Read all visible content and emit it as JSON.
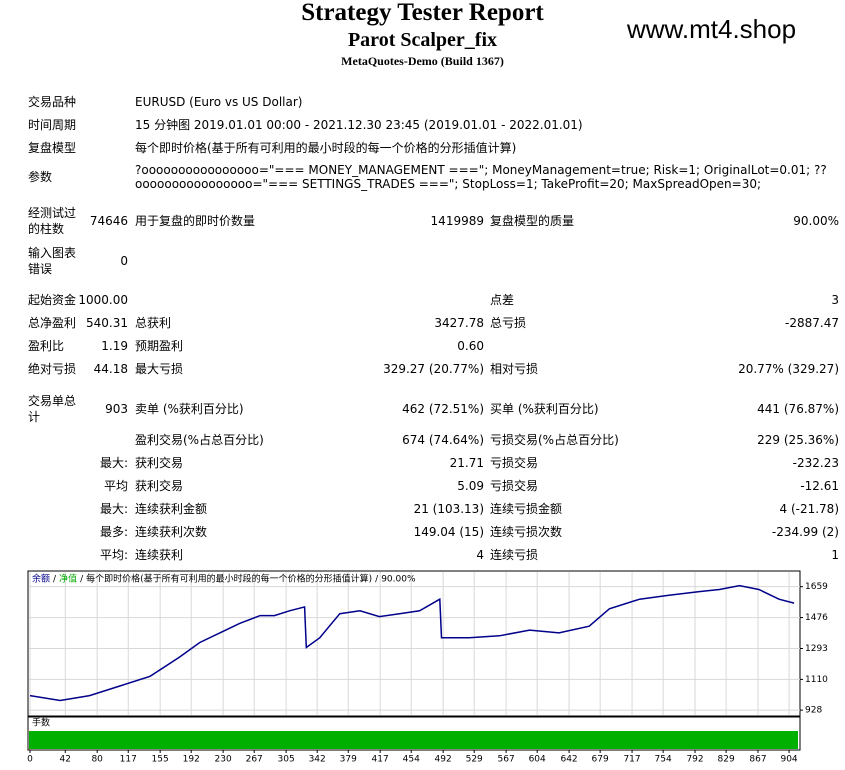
{
  "header": {
    "title": "Strategy Tester Report",
    "subtitle": "Parot Scalper_fix",
    "build": "MetaQuotes-Demo (Build 1367)",
    "watermark": "www.mt4.shop"
  },
  "info": [
    {
      "label": "交易品种",
      "text": "EURUSD (Euro vs US Dollar)"
    },
    {
      "label": "时间周期",
      "text": "15 分钟图 2019.01.01 00:00 - 2021.12.30 23:45 (2019.01.01 - 2022.01.01)"
    },
    {
      "label": "复盘模型",
      "text": "每个即时价格(基于所有可利用的最小时段的每一个价格的分形插值计算)"
    },
    {
      "label": "参数",
      "lines": [
        "?oooooooooooooooo=\"=== MONEY_MANAGEMENT ===\"; MoneyManagement=true; Risk=1; OriginalLot=0.01; ??",
        "oooooooooooooooo=\"=== SETTINGS_TRADES ===\"; StopLoss=1; TakeProfit=20; MaxSpreadOpen=30;"
      ]
    }
  ],
  "stats": [
    {
      "label": "经测试过的柱数",
      "value": "74646",
      "mid_label": "用于复盘的即时价数量",
      "mid_value": "1419989",
      "right_label": "复盘模型的质量",
      "right_value": "90.00%"
    },
    {
      "label": "输入图表错误",
      "value": "0"
    },
    {
      "label": "起始资金",
      "value": "1000.00",
      "right_label": "点差",
      "right_value": "3"
    },
    {
      "label": "总净盈利",
      "value": "540.31",
      "mid_label": "总获利",
      "mid_value": "3427.78",
      "right_label": "总亏损",
      "right_value": "-2887.47"
    },
    {
      "label": "盈利比",
      "value": "1.19",
      "mid_label": "预期盈利",
      "mid_value": "0.60"
    },
    {
      "label": "绝对亏损",
      "value": "44.18",
      "mid_label": "最大亏损",
      "mid_value": "329.27 (20.77%)",
      "right_label": "相对亏损",
      "right_value": "20.77% (329.27)"
    },
    {
      "label": "交易单总计",
      "value": "903",
      "mid_label": "卖单 (%获利百分比)",
      "mid_value": "462 (72.51%)",
      "right_label": "买单 (%获利百分比)",
      "right_value": "441 (76.87%)"
    },
    {
      "mid_label": "盈利交易(%占总百分比)",
      "mid_value": "674 (74.64%)",
      "right_label": "亏损交易(%占总百分比)",
      "right_value": "229 (25.36%)"
    },
    {
      "sub_label": "最大:",
      "mid_label": "获利交易",
      "mid_value": "21.71",
      "right_label": "亏损交易",
      "right_value": "-232.23"
    },
    {
      "sub_label": "平均",
      "mid_label": "获利交易",
      "mid_value": "5.09",
      "right_label": "亏损交易",
      "right_value": "-12.61"
    },
    {
      "sub_label": "最大:",
      "mid_label": "连续获利金额",
      "mid_value": "21 (103.13)",
      "right_label": "连续亏损金额",
      "right_value": "4 (-21.78)"
    },
    {
      "sub_label": "最多:",
      "mid_label": "连续获利次数",
      "mid_value": "149.04 (15)",
      "right_label": "连续亏损次数",
      "right_value": "-234.99 (2)"
    },
    {
      "sub_label": "平均:",
      "mid_label": "连续获利",
      "mid_value": "4",
      "right_label": "连续亏损",
      "right_value": "1"
    }
  ],
  "chart_data": {
    "type": "line",
    "series": [
      {
        "name": "余额",
        "color": "#00008b",
        "x": [
          0,
          36,
          71,
          107,
          143,
          178,
          202,
          226,
          250,
          274,
          291,
          309,
          327,
          329,
          345,
          369,
          393,
          416,
          440,
          464,
          488,
          490,
          523,
          559,
          595,
          630,
          666,
          690,
          726,
          761,
          797,
          821,
          845,
          868,
          892,
          910
        ],
        "values": [
          1014,
          985,
          1014,
          1071,
          1128,
          1242,
          1328,
          1385,
          1442,
          1488,
          1488,
          1516,
          1539,
          1299,
          1356,
          1499,
          1516,
          1482,
          1499,
          1516,
          1585,
          1356,
          1356,
          1368,
          1402,
          1385,
          1425,
          1528,
          1585,
          1608,
          1630,
          1642,
          1665,
          1642,
          1585,
          1562
        ]
      }
    ],
    "equity_name": "净值",
    "equity_color": "#00aa00",
    "separator": "/",
    "model": "每个即时价格(基于所有可利用的最小时段的每一个价格的分形插值计算)",
    "quality": "90.00%",
    "lots_label": "手数",
    "lots_color": "#00b000",
    "xlim": [
      0,
      917
    ],
    "ylim": [
      905,
      1740
    ],
    "xticks": [
      0,
      42,
      80,
      117,
      155,
      192,
      230,
      267,
      305,
      342,
      379,
      417,
      454,
      492,
      529,
      567,
      604,
      642,
      679,
      717,
      754,
      792,
      829,
      867,
      904
    ],
    "yticks": [
      1659,
      1476,
      1293,
      1110,
      928
    ],
    "grid": true
  }
}
